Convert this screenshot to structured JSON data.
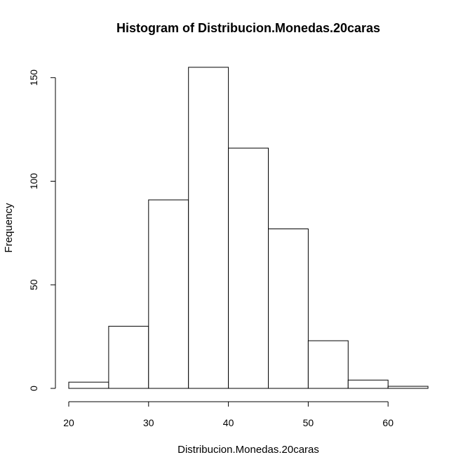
{
  "chart_data": {
    "type": "bar",
    "title": "Histogram of Distribucion.Monedas.20caras",
    "xlabel": "Distribucion.Monedas.20caras",
    "ylabel": "Frequency",
    "bins": [
      {
        "start": 20,
        "end": 25,
        "count": 3
      },
      {
        "start": 25,
        "end": 30,
        "count": 30
      },
      {
        "start": 30,
        "end": 35,
        "count": 91
      },
      {
        "start": 35,
        "end": 40,
        "count": 155
      },
      {
        "start": 40,
        "end": 45,
        "count": 116
      },
      {
        "start": 45,
        "end": 50,
        "count": 77
      },
      {
        "start": 50,
        "end": 55,
        "count": 23
      },
      {
        "start": 55,
        "end": 60,
        "count": 4
      },
      {
        "start": 60,
        "end": 65,
        "count": 1
      }
    ],
    "xlim": [
      20,
      65
    ],
    "ylim": [
      0,
      155
    ],
    "xticks": [
      20,
      30,
      40,
      50,
      60
    ],
    "yticks": [
      0,
      50,
      100,
      150
    ],
    "grid": false,
    "colors": {
      "fill": "#ffffff",
      "stroke": "#000000"
    }
  }
}
